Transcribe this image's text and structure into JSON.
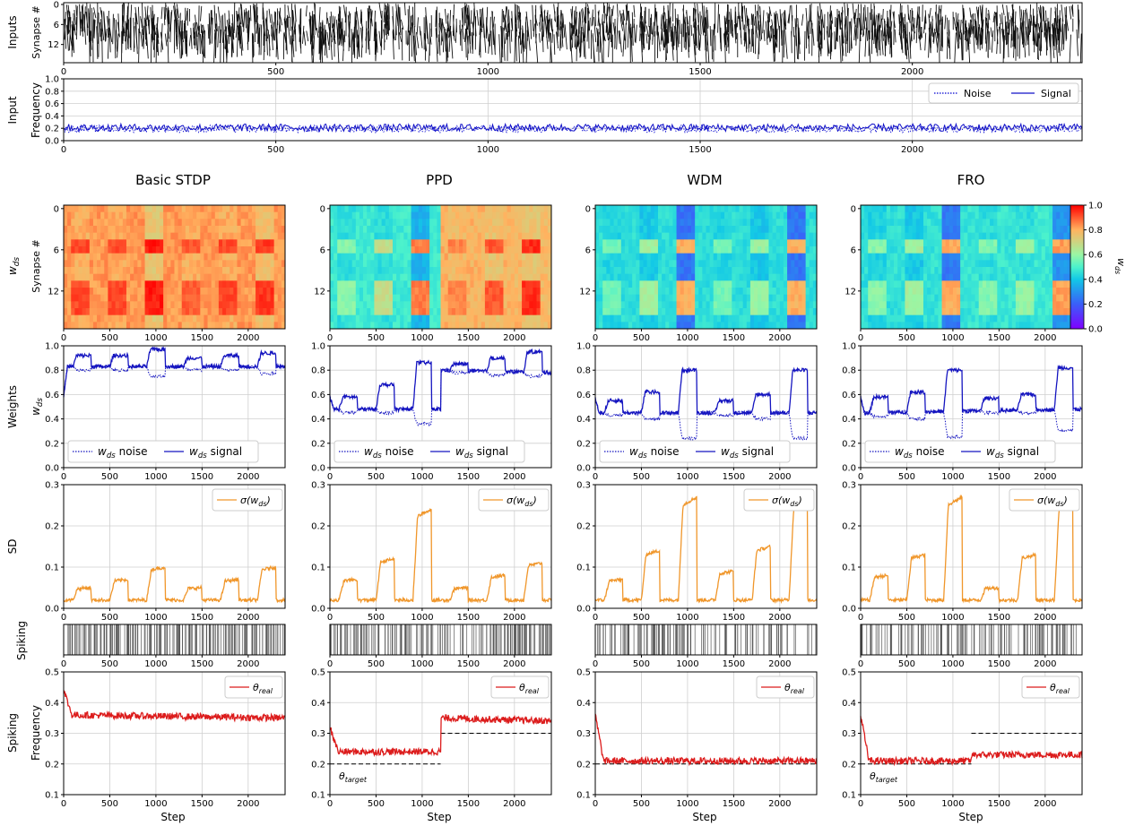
{
  "figure": {
    "row_labels": {
      "inputs": "Inputs",
      "input_frequency": [
        "Input",
        "Frequency"
      ],
      "w_ds": "w_ds",
      "weights": "Weights",
      "sd": "SD",
      "spiking": "Spiking",
      "spiking_frequency": [
        "Spiking",
        "Frequency"
      ]
    },
    "column_titles": [
      "Basic STDP",
      "PPD",
      "WDM",
      "FRO"
    ],
    "xlabel": "Step"
  },
  "chart_data": [
    {
      "id": "inputs-raster",
      "type": "heatmap",
      "ylabel": "Synapse #",
      "xlim": [
        0,
        2400
      ],
      "ylim": [
        0,
        18
      ],
      "x_ticks": [
        0,
        500,
        1000,
        1500,
        2000
      ],
      "y_ticks": [
        0,
        6,
        12
      ],
      "colors": {
        "spike": "#111111",
        "background": "#ffffff"
      }
    },
    {
      "id": "input-frequency",
      "type": "line",
      "ylabel": "Frequency",
      "xlim": [
        0,
        2400
      ],
      "ylim": [
        0,
        1
      ],
      "y_ticks": [
        0.0,
        0.2,
        0.4,
        0.6,
        0.8,
        1.0
      ],
      "x_ticks": [
        0,
        500,
        1000,
        1500,
        2000
      ],
      "legend": {
        "position": "top-right",
        "entries": [
          "Noise",
          "Signal"
        ]
      },
      "series": [
        {
          "name": "Noise",
          "style": "dotted",
          "color": "#0000d0",
          "mean": 0.2
        },
        {
          "name": "Signal",
          "style": "solid",
          "color": "#1010c8",
          "mean": 0.2
        }
      ]
    },
    {
      "id": "weights-heatmaps",
      "type": "heatmap",
      "ylabel": "Synapse #",
      "xlim": [
        0,
        2400
      ],
      "y_ticks": [
        0,
        6,
        12
      ],
      "x_ticks": [
        0,
        500,
        1000,
        1500,
        2000
      ],
      "colorbar": {
        "label": "w_ds",
        "range": [
          0,
          1
        ],
        "ticks": [
          0.0,
          0.2,
          0.4,
          0.6,
          0.8,
          1.0
        ],
        "colormap": "rainbow"
      },
      "panels": [
        {
          "column": "Basic STDP",
          "noise_value": 0.83,
          "signal_values": [
            0.92,
            0.92,
            0.97,
            0.9,
            0.92,
            0.94
          ]
        },
        {
          "column": "PPD",
          "noise_value": 0.5,
          "signal_values": [
            0.58,
            0.68,
            0.86,
            0.85,
            0.9,
            0.95
          ]
        },
        {
          "column": "WDM",
          "noise_value": 0.45,
          "signal_values": [
            0.55,
            0.62,
            0.8,
            0.55,
            0.6,
            0.8
          ]
        },
        {
          "column": "FRO",
          "noise_value": 0.45,
          "signal_values": [
            0.58,
            0.62,
            0.8,
            0.57,
            0.6,
            0.82
          ]
        }
      ]
    },
    {
      "id": "weights",
      "type": "line",
      "ylabel": "w_ds",
      "xlim": [
        0,
        2400
      ],
      "ylim": [
        0,
        1
      ],
      "y_ticks": [
        0.0,
        0.2,
        0.4,
        0.6,
        0.8,
        1.0
      ],
      "x_ticks": [
        0,
        500,
        1000,
        1500,
        2000
      ],
      "legend": {
        "position": "bottom-center",
        "entries": [
          "w_ds noise",
          "w_ds signal"
        ]
      },
      "series_colors": {
        "noise": "#1515c0",
        "signal": "#1515c0"
      },
      "signal_windows": [
        [
          100,
          300
        ],
        [
          500,
          700
        ],
        [
          900,
          1100
        ],
        [
          1300,
          1500
        ],
        [
          1700,
          1900
        ],
        [
          2100,
          2300
        ]
      ],
      "panels": [
        {
          "column": "Basic STDP",
          "baseline": [
            [
              0,
              0.83
            ],
            [
              2400,
              0.83
            ]
          ],
          "signal_peaks": [
            0.92,
            0.92,
            0.97,
            0.9,
            0.92,
            0.94
          ],
          "noise_dips": [
            0.8,
            0.8,
            0.75,
            0.8,
            0.8,
            0.77
          ]
        },
        {
          "column": "PPD",
          "baseline": [
            [
              0,
              0.48
            ],
            [
              1200,
              0.48
            ],
            [
              1200,
              0.8
            ],
            [
              2400,
              0.78
            ]
          ],
          "signal_peaks": [
            0.58,
            0.68,
            0.86,
            0.85,
            0.9,
            0.95
          ],
          "noise_dips": [
            0.45,
            0.45,
            0.36,
            0.78,
            0.76,
            0.75
          ]
        },
        {
          "column": "WDM",
          "baseline": [
            [
              0,
              0.45
            ],
            [
              2400,
              0.45
            ]
          ],
          "signal_peaks": [
            0.55,
            0.62,
            0.8,
            0.55,
            0.6,
            0.8
          ],
          "noise_dips": [
            0.43,
            0.4,
            0.24,
            0.43,
            0.4,
            0.24
          ]
        },
        {
          "column": "FRO",
          "baseline": [
            [
              0,
              0.45
            ],
            [
              2400,
              0.48
            ]
          ],
          "signal_peaks": [
            0.58,
            0.62,
            0.8,
            0.57,
            0.6,
            0.82
          ],
          "noise_dips": [
            0.42,
            0.4,
            0.25,
            0.45,
            0.45,
            0.3
          ]
        }
      ]
    },
    {
      "id": "sd",
      "type": "line",
      "xlim": [
        0,
        2400
      ],
      "ylim": [
        0,
        0.3
      ],
      "y_ticks": [
        0.0,
        0.1,
        0.2,
        0.3
      ],
      "x_ticks": [
        0,
        500,
        1000,
        1500,
        2000
      ],
      "legend": {
        "position": "top-right",
        "entries": [
          "σ(w_ds)"
        ]
      },
      "color": "#f0962a",
      "panels": [
        {
          "column": "Basic STDP",
          "base": 0.02,
          "peaks": [
            0.05,
            0.07,
            0.1,
            0.05,
            0.07,
            0.1
          ]
        },
        {
          "column": "PPD",
          "base": 0.02,
          "peaks": [
            0.07,
            0.12,
            0.24,
            0.05,
            0.08,
            0.11
          ]
        },
        {
          "column": "WDM",
          "base": 0.02,
          "peaks": [
            0.07,
            0.14,
            0.27,
            0.09,
            0.15,
            0.26
          ]
        },
        {
          "column": "FRO",
          "base": 0.02,
          "peaks": [
            0.08,
            0.13,
            0.27,
            0.05,
            0.13,
            0.26
          ]
        }
      ]
    },
    {
      "id": "spiking-raster",
      "type": "heatmap",
      "xlim": [
        0,
        2400
      ],
      "x_ticks": [
        0,
        500,
        1000,
        1500,
        2000
      ],
      "colors": {
        "spike": "#222222"
      },
      "panels": [
        {
          "column": "Basic STDP",
          "density": 0.35
        },
        {
          "column": "PPD",
          "density": 0.3
        },
        {
          "column": "WDM",
          "density": 0.21
        },
        {
          "column": "FRO",
          "density": 0.22
        }
      ]
    },
    {
      "id": "spiking-frequency",
      "type": "line",
      "xlabel": "Step",
      "xlim": [
        0,
        2400
      ],
      "ylim": [
        0.1,
        0.5
      ],
      "y_ticks": [
        0.1,
        0.2,
        0.3,
        0.4,
        0.5
      ],
      "x_ticks": [
        0,
        500,
        1000,
        1500,
        2000
      ],
      "legend": {
        "position": "top-right",
        "entries": [
          "θ_real"
        ]
      },
      "color": "#dc1c1c",
      "panels": [
        {
          "column": "Basic STDP",
          "start": 0.44,
          "level": [
            [
              0,
              0.36
            ],
            [
              2400,
              0.35
            ]
          ],
          "target": null,
          "target_label": ""
        },
        {
          "column": "PPD",
          "start": 0.32,
          "level": [
            [
              0,
              0.24
            ],
            [
              1200,
              0.24
            ],
            [
              1200,
              0.35
            ],
            [
              2400,
              0.34
            ]
          ],
          "target": [
            [
              0,
              1200,
              0.2
            ],
            [
              1200,
              2400,
              0.3
            ]
          ],
          "target_label": "θ_target"
        },
        {
          "column": "WDM",
          "start": 0.36,
          "level": [
            [
              0,
              0.21
            ],
            [
              2400,
              0.21
            ]
          ],
          "target": [
            [
              0,
              2400,
              0.2
            ]
          ],
          "target_label": ""
        },
        {
          "column": "FRO",
          "start": 0.36,
          "level": [
            [
              0,
              0.21
            ],
            [
              1200,
              0.21
            ],
            [
              1200,
              0.23
            ],
            [
              2400,
              0.23
            ]
          ],
          "target": [
            [
              0,
              1200,
              0.2
            ],
            [
              1200,
              2400,
              0.3
            ]
          ],
          "target_label": "θ_target"
        }
      ]
    }
  ]
}
